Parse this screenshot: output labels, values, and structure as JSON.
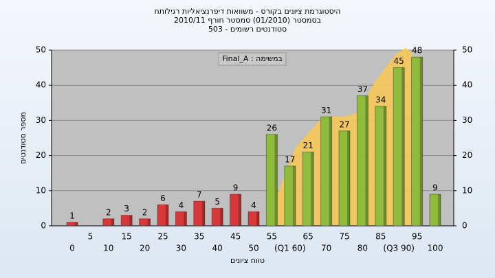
{
  "chart_data": {
    "type": "bar",
    "title": "היסטוגרמת ציונים בקורס - משוואות דיפרנציאליות רגילותח",
    "subtitle": "בסמסטר  (01/2010)  סמסטר חורף  2010/11",
    "subtitle2": "סטודנטים רשומים - 503",
    "annotation": "במשימה : Final_A",
    "x_label": "טווח ציונים",
    "y_label": "מספר סטודנטים",
    "categories": [
      "0",
      "5",
      "10",
      "15",
      "20",
      "25",
      "30",
      "35",
      "40",
      "45",
      "50",
      "55",
      "(Q1 60)",
      "65",
      "70",
      "75",
      "80",
      "85",
      "(Q3 90)",
      "95",
      "100"
    ],
    "values": [
      1,
      0,
      2,
      3,
      2,
      6,
      4,
      7,
      5,
      9,
      4,
      26,
      17,
      21,
      31,
      27,
      37,
      34,
      45,
      48,
      9
    ],
    "colors": [
      "#d8383a",
      "#d8383a",
      "#d8383a",
      "#d8383a",
      "#d8383a",
      "#d8383a",
      "#d8383a",
      "#d8383a",
      "#d8383a",
      "#d8383a",
      "#d8383a",
      "#8fbc3c",
      "#8fbc3c",
      "#8fbc3c",
      "#8fbc3c",
      "#8fbc3c",
      "#8fbc3c",
      "#8fbc3c",
      "#8fbc3c",
      "#8fbc3c",
      "#8fbc3c"
    ],
    "ylim": [
      0,
      50
    ],
    "yticks": [
      0,
      10,
      20,
      30,
      40,
      50
    ],
    "y2lim": [
      0,
      50
    ],
    "y2ticks": [
      0,
      10,
      20,
      30,
      40,
      50
    ],
    "grid": true
  }
}
